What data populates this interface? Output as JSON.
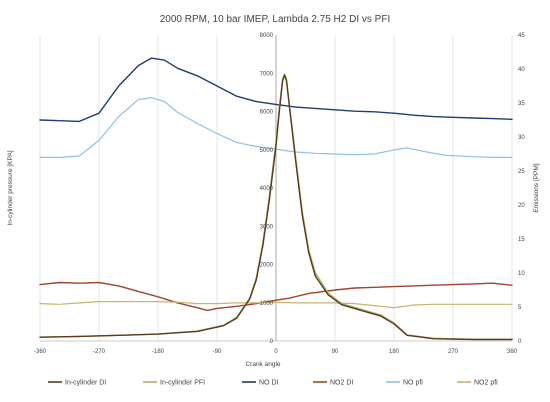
{
  "chart_data": {
    "type": "line",
    "title": "2000 RPM, 10 bar IMEP, Lambda 2.75 H2 DI vs PFI",
    "xlabel": "Crank angle",
    "ylabel_left": "In-cylinder pressure [KPA]",
    "ylabel_right": "Emissions [PPM]",
    "xlim": [
      -360,
      360
    ],
    "ylim_left": [
      0,
      8000
    ],
    "ylim_right": [
      0,
      45
    ],
    "x_ticks": [
      "-360",
      "-270",
      "-180",
      "-90",
      "0",
      "90",
      "180",
      "270",
      "360"
    ],
    "y_left_ticks": [
      "0",
      "1000",
      "2000",
      "3000",
      "4000",
      "5000",
      "6000",
      "7000",
      "8000"
    ],
    "y_right_ticks": [
      "0",
      "5",
      "10",
      "15",
      "20",
      "25",
      "30",
      "35",
      "40",
      "45"
    ],
    "grid": "vertical",
    "legend_position": "bottom",
    "series": [
      {
        "name": "In-cylinder DI",
        "axis": "left",
        "color": "#5b3a1e",
        "width": 1.4,
        "points": [
          [
            -360,
            100
          ],
          [
            -300,
            120
          ],
          [
            -240,
            150
          ],
          [
            -180,
            180
          ],
          [
            -120,
            250
          ],
          [
            -80,
            400
          ],
          [
            -60,
            600
          ],
          [
            -40,
            1100
          ],
          [
            -30,
            1600
          ],
          [
            -20,
            2500
          ],
          [
            -10,
            3700
          ],
          [
            0,
            5100
          ],
          [
            5,
            6000
          ],
          [
            10,
            6800
          ],
          [
            13,
            6950
          ],
          [
            16,
            6800
          ],
          [
            20,
            6200
          ],
          [
            30,
            4700
          ],
          [
            40,
            3300
          ],
          [
            50,
            2300
          ],
          [
            60,
            1700
          ],
          [
            80,
            1200
          ],
          [
            100,
            950
          ],
          [
            130,
            800
          ],
          [
            160,
            650
          ],
          [
            180,
            450
          ],
          [
            200,
            150
          ],
          [
            240,
            60
          ],
          [
            300,
            40
          ],
          [
            360,
            40
          ]
        ]
      },
      {
        "name": "In-cylinder  PFI",
        "axis": "left",
        "color": "#a5b36a",
        "width": 1.4,
        "points": [
          [
            -360,
            100
          ],
          [
            -300,
            120
          ],
          [
            -240,
            150
          ],
          [
            -180,
            180
          ],
          [
            -120,
            260
          ],
          [
            -80,
            410
          ],
          [
            -60,
            620
          ],
          [
            -40,
            1130
          ],
          [
            -30,
            1650
          ],
          [
            -20,
            2580
          ],
          [
            -10,
            3800
          ],
          [
            0,
            5200
          ],
          [
            5,
            6100
          ],
          [
            10,
            6850
          ],
          [
            13,
            6980
          ],
          [
            16,
            6850
          ],
          [
            20,
            6250
          ],
          [
            30,
            4800
          ],
          [
            40,
            3400
          ],
          [
            50,
            2380
          ],
          [
            60,
            1780
          ],
          [
            80,
            1250
          ],
          [
            100,
            980
          ],
          [
            130,
            830
          ],
          [
            160,
            680
          ],
          [
            180,
            470
          ],
          [
            200,
            160
          ],
          [
            240,
            70
          ],
          [
            300,
            45
          ],
          [
            360,
            45
          ]
        ]
      },
      {
        "name": "NO DI",
        "axis": "right",
        "color": "#1f3d6e",
        "width": 1.4,
        "points": [
          [
            -360,
            32.5
          ],
          [
            -330,
            32.4
          ],
          [
            -300,
            32.3
          ],
          [
            -270,
            33.5
          ],
          [
            -240,
            37.5
          ],
          [
            -210,
            40.5
          ],
          [
            -190,
            41.6
          ],
          [
            -170,
            41.3
          ],
          [
            -150,
            40.1
          ],
          [
            -120,
            39
          ],
          [
            -90,
            37.5
          ],
          [
            -60,
            36
          ],
          [
            -30,
            35.2
          ],
          [
            0,
            34.8
          ],
          [
            30,
            34.4
          ],
          [
            60,
            34.2
          ],
          [
            90,
            34
          ],
          [
            120,
            33.8
          ],
          [
            150,
            33.7
          ],
          [
            180,
            33.5
          ],
          [
            210,
            33.2
          ],
          [
            240,
            33
          ],
          [
            270,
            32.9
          ],
          [
            300,
            32.8
          ],
          [
            330,
            32.7
          ],
          [
            360,
            32.6
          ]
        ]
      },
      {
        "name": "NO2 DI",
        "axis": "right",
        "color": "#a0442e",
        "width": 1.4,
        "points": [
          [
            -360,
            8.3
          ],
          [
            -330,
            8.6
          ],
          [
            -300,
            8.5
          ],
          [
            -270,
            8.6
          ],
          [
            -240,
            8.1
          ],
          [
            -210,
            7.3
          ],
          [
            -180,
            6.5
          ],
          [
            -150,
            5.6
          ],
          [
            -120,
            4.9
          ],
          [
            -105,
            4.5
          ],
          [
            -90,
            4.8
          ],
          [
            -60,
            5.1
          ],
          [
            -30,
            5.5
          ],
          [
            0,
            6
          ],
          [
            20,
            6.3
          ],
          [
            50,
            7
          ],
          [
            90,
            7.5
          ],
          [
            120,
            7.8
          ],
          [
            150,
            7.9
          ],
          [
            180,
            8
          ],
          [
            210,
            8.1
          ],
          [
            240,
            8.2
          ],
          [
            270,
            8.3
          ],
          [
            300,
            8.4
          ],
          [
            330,
            8.5
          ],
          [
            360,
            8.2
          ]
        ]
      },
      {
        "name": "NO pfi",
        "axis": "right",
        "color": "#8fc1e8",
        "width": 1.2,
        "points": [
          [
            -360,
            27
          ],
          [
            -330,
            27
          ],
          [
            -300,
            27.2
          ],
          [
            -270,
            29.5
          ],
          [
            -240,
            33
          ],
          [
            -210,
            35.5
          ],
          [
            -190,
            35.8
          ],
          [
            -170,
            35.2
          ],
          [
            -150,
            33.6
          ],
          [
            -120,
            32
          ],
          [
            -90,
            30.5
          ],
          [
            -60,
            29.2
          ],
          [
            -30,
            28.6
          ],
          [
            0,
            28.2
          ],
          [
            30,
            27.8
          ],
          [
            60,
            27.6
          ],
          [
            90,
            27.5
          ],
          [
            120,
            27.4
          ],
          [
            150,
            27.5
          ],
          [
            180,
            28.1
          ],
          [
            200,
            28.4
          ],
          [
            230,
            27.8
          ],
          [
            260,
            27.3
          ],
          [
            300,
            27.1
          ],
          [
            330,
            27
          ],
          [
            360,
            27
          ]
        ]
      },
      {
        "name": "NO2 pfi",
        "axis": "right",
        "color": "#c9b36a",
        "width": 1.2,
        "points": [
          [
            -360,
            5.5
          ],
          [
            -330,
            5.4
          ],
          [
            -300,
            5.6
          ],
          [
            -270,
            5.8
          ],
          [
            -240,
            5.8
          ],
          [
            -210,
            5.8
          ],
          [
            -180,
            5.8
          ],
          [
            -150,
            5.7
          ],
          [
            -120,
            5.5
          ],
          [
            -90,
            5.5
          ],
          [
            -60,
            5.6
          ],
          [
            -30,
            5.6
          ],
          [
            0,
            5.7
          ],
          [
            30,
            5.6
          ],
          [
            60,
            5.6
          ],
          [
            90,
            5.6
          ],
          [
            120,
            5.5
          ],
          [
            150,
            5.2
          ],
          [
            180,
            4.9
          ],
          [
            210,
            5.3
          ],
          [
            240,
            5.4
          ],
          [
            270,
            5.4
          ],
          [
            300,
            5.4
          ],
          [
            330,
            5.4
          ],
          [
            360,
            5.4
          ]
        ]
      }
    ]
  }
}
